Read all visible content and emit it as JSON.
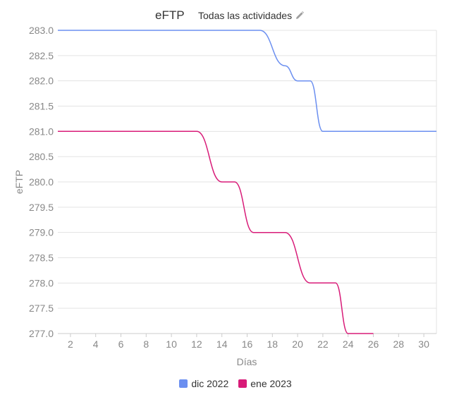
{
  "header": {
    "title": "eFTP",
    "filter_label": "Todas las actividades",
    "edit_icon": "pencil-icon"
  },
  "chart_data": {
    "type": "line",
    "title": "eFTP",
    "xlabel": "Días",
    "ylabel": "eFTP",
    "xlim": [
      1,
      31
    ],
    "ylim": [
      277.0,
      283.0
    ],
    "xticks": [
      2,
      4,
      6,
      8,
      10,
      12,
      14,
      16,
      18,
      20,
      22,
      24,
      26,
      28,
      30
    ],
    "yticks": [
      277.0,
      277.5,
      278.0,
      278.5,
      279.0,
      279.5,
      280.0,
      280.5,
      281.0,
      281.5,
      282.0,
      282.5,
      283.0
    ],
    "grid": true,
    "legend_position": "bottom",
    "series": [
      {
        "name": "dic 2022",
        "color": "#6b8ff0",
        "points": [
          [
            1,
            283.0
          ],
          [
            17,
            283.0
          ],
          [
            19,
            282.3
          ],
          [
            20,
            282.0
          ],
          [
            21,
            282.0
          ],
          [
            22,
            281.0
          ],
          [
            31,
            281.0
          ]
        ]
      },
      {
        "name": "ene 2023",
        "color": "#d81b78",
        "points": [
          [
            1,
            281.0
          ],
          [
            12,
            281.0
          ],
          [
            14,
            280.0
          ],
          [
            15,
            280.0
          ],
          [
            16.5,
            279.0
          ],
          [
            19,
            279.0
          ],
          [
            21,
            278.0
          ],
          [
            23,
            278.0
          ],
          [
            24,
            277.0
          ],
          [
            26,
            277.0
          ]
        ]
      }
    ]
  }
}
